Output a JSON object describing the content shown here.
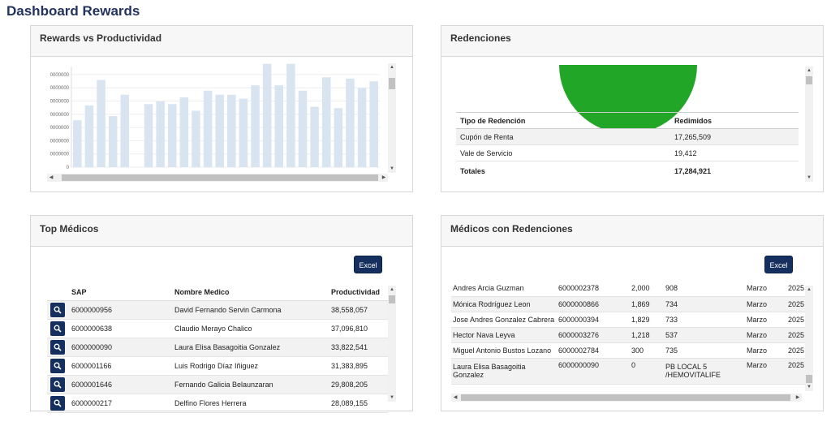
{
  "page": {
    "title": "Dashboard Rewards"
  },
  "rewards_card": {
    "title": "Rewards vs Productividad"
  },
  "chart_data": {
    "type": "bar",
    "title": "",
    "ytick_labels": [
      "0",
      "0000000",
      "0000000",
      "0000000",
      "0000000",
      "0000000",
      "0000000",
      "0000000"
    ],
    "values": [
      3.5,
      4.6,
      6.5,
      3.8,
      5.4,
      0,
      4.7,
      4.9,
      4.7,
      5.2,
      4.2,
      5.7,
      5.4,
      5.4,
      5.1,
      6.1,
      7.7,
      6.1,
      7.7,
      5.7,
      4.5,
      6.7,
      4.4,
      6.6,
      5.9,
      6.4
    ],
    "ylim": [
      0,
      7.5
    ],
    "bar_color": "#d9e4f1"
  },
  "redenciones_card": {
    "title": "Redenciones",
    "pie_color": "#22a628",
    "headers": {
      "tipo": "Tipo de Redención",
      "redimidos": "Redimidos"
    },
    "rows": [
      {
        "tipo": "Cupón de Renta",
        "redimidos": "17,265,509"
      },
      {
        "tipo": "Vale de Servicio",
        "redimidos": "19,412"
      }
    ],
    "total": {
      "label": "Totales",
      "value": "17,284,921"
    }
  },
  "top_card": {
    "title": "Top Médicos",
    "excel_label": "Excel",
    "headers": {
      "sap": "SAP",
      "nombre": "Nombre Medico",
      "productividad": "Productividad"
    },
    "rows": [
      {
        "sap": "6000000956",
        "nombre": "David Fernando Servin Carmona",
        "prod": "38,558,057"
      },
      {
        "sap": "6000000638",
        "nombre": "Claudio Merayo Chalico",
        "prod": "37,096,810"
      },
      {
        "sap": "6000000090",
        "nombre": "Laura Elisa Basagoitia Gonzalez",
        "prod": "33,822,541"
      },
      {
        "sap": "6000001166",
        "nombre": "Luis Rodrigo Díaz Iñiguez",
        "prod": "31,383,895"
      },
      {
        "sap": "6000001646",
        "nombre": "Fernando Galicia Belaunzaran",
        "prod": "29,808,205"
      },
      {
        "sap": "6000000217",
        "nombre": "Delfino Flores Herrera",
        "prod": "28,089,155"
      }
    ]
  },
  "med_card": {
    "title": "Médicos con Redenciones",
    "excel_label": "Excel",
    "rows": [
      {
        "nombre": "Andres Arcia Guzman",
        "sap": "6000002378",
        "cant": "2,000",
        "cod": "908",
        "mes": "Marzo",
        "anio": "2025"
      },
      {
        "nombre": "Mónica Rodríguez Leon",
        "sap": "6000000866",
        "cant": "1,869",
        "cod": "734",
        "mes": "Marzo",
        "anio": "2025"
      },
      {
        "nombre": "Jose Andres Gonzalez Cabrera",
        "sap": "6000000394",
        "cant": "1,829",
        "cod": "733",
        "mes": "Marzo",
        "anio": "2025"
      },
      {
        "nombre": "Hector Nava Leyva",
        "sap": "6000003276",
        "cant": "1,218",
        "cod": "537",
        "mes": "Marzo",
        "anio": "2025"
      },
      {
        "nombre": "Miguel Antonio Bustos Lozano",
        "sap": "6000002784",
        "cant": "300",
        "cod": "735",
        "mes": "Marzo",
        "anio": "2025"
      },
      {
        "nombre": "Laura Elisa Basagoitia Gonzalez",
        "sap": "6000000090",
        "cant": "0",
        "cod": "PB LOCAL 5 /HEMOVITALIFE",
        "mes": "Marzo",
        "anio": "2025"
      }
    ]
  }
}
